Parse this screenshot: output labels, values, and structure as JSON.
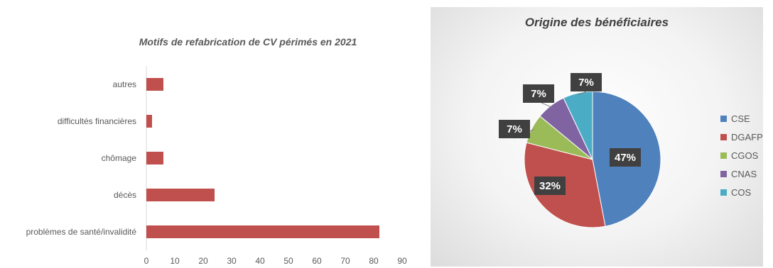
{
  "chart_data": [
    {
      "type": "bar",
      "orientation": "horizontal",
      "title": "Motifs de refabrication de CV périmés en 2021",
      "categories": [
        "autres",
        "difficultés financières",
        "chômage",
        "décès",
        "problèmes de santé/invalidité"
      ],
      "values": [
        6,
        2,
        6,
        24,
        82
      ],
      "xlim": [
        0,
        90
      ],
      "xticks": [
        "0",
        "10",
        "20",
        "30",
        "40",
        "50",
        "60",
        "70",
        "80",
        "90"
      ],
      "grid": false,
      "color": "#c0504d"
    },
    {
      "type": "pie",
      "title": "Origine des bénéficiaires",
      "categories": [
        "CSE",
        "DGAFP",
        "CGOS",
        "CNAS",
        "COS"
      ],
      "values": [
        47,
        32,
        7,
        7,
        7
      ],
      "labels": [
        "47%",
        "32%",
        "7%",
        "7%",
        "7%"
      ],
      "colors": [
        "#4f81bd",
        "#c0504d",
        "#9bbb59",
        "#8064a2",
        "#4bacc6"
      ],
      "legend_position": "right"
    }
  ]
}
